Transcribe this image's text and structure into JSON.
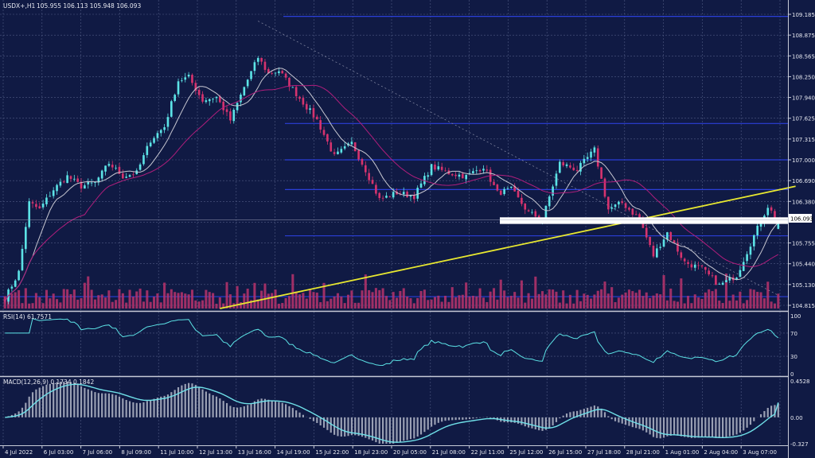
{
  "header": {
    "symbol_label": "USDX+,H1",
    "ohlc_label": "105.955 106.113 105.948 106.093"
  },
  "colors": {
    "background": "#101a44",
    "grid": "#4f5a83",
    "bull": "#5ce3e6",
    "bear": "#d6336e",
    "volume": "#b8346c",
    "ma_fast": "#c8c8d2",
    "ma_slow": "#b01e7c",
    "trendline": "#e8e830",
    "level_line": "#2b3fd8",
    "rsi": "#5ce3e6",
    "macd_signal": "#6fe0e8",
    "macd_hist": "#9aa0b4"
  },
  "chart_data": [
    {
      "type": "candlestick",
      "name": "price",
      "symbol": "USDX+",
      "timeframe": "H1",
      "ohlc": {
        "open": 105.955,
        "high": 106.113,
        "low": 105.948,
        "close": 106.093
      },
      "current_price_label": "106.093",
      "current_price": 106.093,
      "x_tick_labels": [
        "4 Jul 2022",
        "6 Jul 03:00",
        "7 Jul 06:00",
        "8 Jul 09:00",
        "11 Jul 10:00",
        "12 Jul 13:00",
        "13 Jul 16:00",
        "14 Jul 19:00",
        "15 Jul 22:00",
        "18 Jul 23:00",
        "20 Jul 05:00",
        "21 Jul 08:00",
        "22 Jul 11:00",
        "25 Jul 12:00",
        "26 Jul 15:00",
        "27 Jul 18:00",
        "28 Jul 21:00",
        "1 Aug 01:00",
        "2 Aug 04:00",
        "3 Aug 07:00"
      ],
      "y_tick_labels": [
        "109.185",
        "108.875",
        "108.565",
        "108.250",
        "107.940",
        "107.625",
        "107.315",
        "107.000",
        "106.690",
        "106.380",
        "106.093",
        "105.755",
        "105.440",
        "105.130",
        "104.815"
      ],
      "ylim": [
        104.75,
        109.25
      ],
      "keypoints": [
        {
          "t": 0,
          "p": 104.9
        },
        {
          "t": 4,
          "p": 105.3
        },
        {
          "t": 7,
          "p": 106.35
        },
        {
          "t": 10,
          "p": 106.25
        },
        {
          "t": 14,
          "p": 106.55
        },
        {
          "t": 18,
          "p": 106.75
        },
        {
          "t": 22,
          "p": 106.6
        },
        {
          "t": 26,
          "p": 106.65
        },
        {
          "t": 30,
          "p": 106.95
        },
        {
          "t": 34,
          "p": 106.75
        },
        {
          "t": 38,
          "p": 106.8
        },
        {
          "t": 42,
          "p": 107.3
        },
        {
          "t": 46,
          "p": 107.5
        },
        {
          "t": 50,
          "p": 108.2
        },
        {
          "t": 53,
          "p": 108.25
        },
        {
          "t": 57,
          "p": 107.9
        },
        {
          "t": 61,
          "p": 107.95
        },
        {
          "t": 65,
          "p": 107.6
        },
        {
          "t": 69,
          "p": 108.1
        },
        {
          "t": 73,
          "p": 108.55
        },
        {
          "t": 76,
          "p": 108.3
        },
        {
          "t": 79,
          "p": 108.35
        },
        {
          "t": 84,
          "p": 108.0
        },
        {
          "t": 90,
          "p": 107.6
        },
        {
          "t": 95,
          "p": 107.05
        },
        {
          "t": 100,
          "p": 107.25
        },
        {
          "t": 104,
          "p": 106.85
        },
        {
          "t": 108,
          "p": 106.4
        },
        {
          "t": 113,
          "p": 106.5
        },
        {
          "t": 118,
          "p": 106.45
        },
        {
          "t": 123,
          "p": 106.9
        },
        {
          "t": 128,
          "p": 106.8
        },
        {
          "t": 133,
          "p": 106.75
        },
        {
          "t": 138,
          "p": 106.9
        },
        {
          "t": 142,
          "p": 106.5
        },
        {
          "t": 146,
          "p": 106.55
        },
        {
          "t": 151,
          "p": 106.2
        },
        {
          "t": 155,
          "p": 106.1
        },
        {
          "t": 160,
          "p": 106.95
        },
        {
          "t": 165,
          "p": 106.85
        },
        {
          "t": 170,
          "p": 107.15
        },
        {
          "t": 174,
          "p": 106.25
        },
        {
          "t": 178,
          "p": 106.35
        },
        {
          "t": 183,
          "p": 106.1
        },
        {
          "t": 187,
          "p": 105.55
        },
        {
          "t": 191,
          "p": 105.9
        },
        {
          "t": 196,
          "p": 105.45
        },
        {
          "t": 201,
          "p": 105.35
        },
        {
          "t": 206,
          "p": 105.1
        },
        {
          "t": 211,
          "p": 105.25
        },
        {
          "t": 216,
          "p": 105.85
        },
        {
          "t": 220,
          "p": 106.3
        },
        {
          "t": 223,
          "p": 106.05
        }
      ],
      "horizontal_levels": [
        109.17,
        107.55,
        107.0,
        106.55,
        105.85
      ],
      "support_zone": [
        106.03,
        106.13
      ],
      "trendline": [
        {
          "t": 62,
          "p": 104.75
        },
        {
          "t": 228,
          "p": 106.6
        }
      ],
      "dotted_diagonal": [
        {
          "t": 73,
          "p": 109.1
        },
        {
          "t": 223,
          "p": 104.95
        }
      ]
    },
    {
      "type": "line",
      "name": "RSI(14)",
      "label": "RSI(14) 61.7571",
      "value": 61.7571,
      "ylim": [
        0,
        100
      ],
      "y_tick_labels": [
        "100",
        "70",
        "30",
        "0"
      ]
    },
    {
      "type": "bar+line",
      "name": "MACD(12,26,9)",
      "label": "MACD(12,26,9) 0.1734 0.1842",
      "macd": 0.1734,
      "signal": 0.1842,
      "ylim": [
        -0.327,
        0.4528
      ],
      "y_tick_labels": [
        "0.4528",
        "0.00",
        "-0.327"
      ]
    }
  ]
}
